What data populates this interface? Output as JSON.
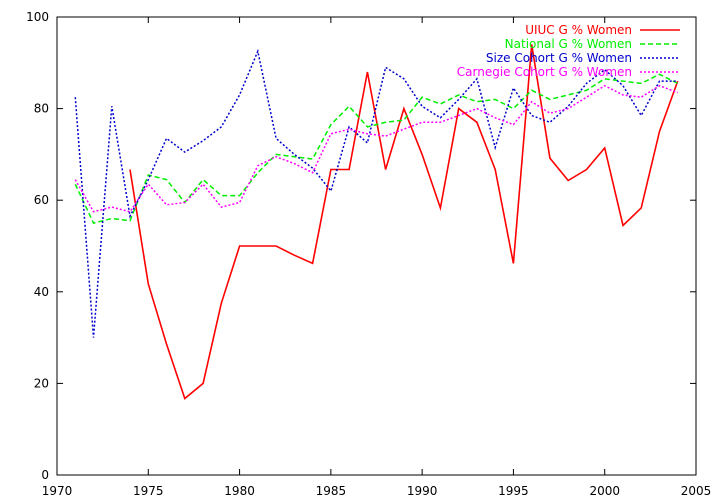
{
  "chart_data": {
    "type": "line",
    "title": "",
    "xlabel": "",
    "ylabel": "",
    "xlim": [
      1970,
      2005
    ],
    "ylim": [
      0,
      100
    ],
    "x_ticks": [
      1970,
      1975,
      1980,
      1985,
      1990,
      1995,
      2000,
      2005
    ],
    "y_ticks": [
      0,
      20,
      40,
      60,
      80,
      100
    ],
    "grid": false,
    "legend_position": "top-right",
    "series": [
      {
        "name": "UIUC G % Women",
        "color": "#ff0000",
        "dash": "solid",
        "x": [
          1974,
          1975,
          1976,
          1977,
          1978,
          1979,
          1980,
          1981,
          1982,
          1983,
          1984,
          1985,
          1986,
          1987,
          1988,
          1989,
          1990,
          1991,
          1992,
          1993,
          1994,
          1995,
          1996,
          1997,
          1998,
          1999,
          2000,
          2001,
          2002,
          2003,
          2004
        ],
        "y": [
          66.7,
          41.7,
          28.6,
          16.7,
          20.0,
          37.5,
          50.0,
          50.0,
          50.0,
          48.0,
          46.2,
          66.7,
          66.7,
          88.0,
          66.7,
          80.0,
          70.0,
          58.3,
          80.0,
          77.0,
          66.7,
          46.2,
          94.0,
          69.2,
          64.3,
          66.7,
          71.4,
          54.5,
          58.3,
          75.0,
          86.0
        ]
      },
      {
        "name": "National G % Women",
        "color": "#00ee00",
        "dash": "dashed",
        "x": [
          1971,
          1972,
          1973,
          1974,
          1975,
          1976,
          1977,
          1978,
          1979,
          1980,
          1981,
          1982,
          1983,
          1984,
          1985,
          1986,
          1987,
          1988,
          1989,
          1990,
          1991,
          1992,
          1993,
          1994,
          1995,
          1996,
          1997,
          1998,
          1999,
          2000,
          2001,
          2002,
          2003,
          2004
        ],
        "y": [
          63.5,
          55.0,
          56.0,
          55.5,
          65.5,
          64.5,
          59.5,
          64.5,
          61.0,
          61.0,
          66.0,
          70.0,
          69.5,
          69.0,
          76.5,
          80.5,
          76.0,
          77.0,
          77.5,
          82.5,
          81.0,
          83.0,
          81.5,
          82.0,
          80.0,
          84.0,
          82.0,
          83.0,
          84.0,
          86.5,
          86.0,
          85.5,
          87.5,
          85.5
        ]
      },
      {
        "name": "Size Cohort G % Women",
        "color": "#0000cc",
        "dash": "dotted",
        "x": [
          1971,
          1972,
          1973,
          1974,
          1975,
          1976,
          1977,
          1978,
          1979,
          1980,
          1981,
          1982,
          1983,
          1984,
          1985,
          1986,
          1987,
          1988,
          1989,
          1990,
          1991,
          1992,
          1993,
          1994,
          1995,
          1996,
          1997,
          1998,
          1999,
          2000,
          2001,
          2002,
          2003,
          2004
        ],
        "y": [
          82.5,
          30.0,
          80.5,
          56.5,
          64.5,
          73.5,
          70.5,
          73.0,
          76.0,
          83.0,
          92.5,
          73.5,
          70.0,
          67.0,
          62.0,
          76.0,
          72.5,
          89.0,
          86.5,
          80.5,
          78.0,
          82.0,
          86.5,
          71.5,
          84.5,
          78.5,
          77.0,
          80.5,
          85.5,
          88.5,
          85.0,
          78.5,
          86.0,
          86.0
        ]
      },
      {
        "name": "Carnegie Cohort G % Women",
        "color": "#ff00ff",
        "dash": "dotted",
        "x": [
          1971,
          1972,
          1973,
          1974,
          1975,
          1976,
          1977,
          1978,
          1979,
          1980,
          1981,
          1982,
          1983,
          1984,
          1985,
          1986,
          1987,
          1988,
          1989,
          1990,
          1991,
          1992,
          1993,
          1994,
          1995,
          1996,
          1997,
          1998,
          1999,
          2000,
          2001,
          2002,
          2003,
          2004
        ],
        "y": [
          64.5,
          57.5,
          58.5,
          57.5,
          63.5,
          59.0,
          59.5,
          63.5,
          58.5,
          59.5,
          67.5,
          69.5,
          68.0,
          66.0,
          74.5,
          75.5,
          74.5,
          74.0,
          75.5,
          77.0,
          77.0,
          78.5,
          80.0,
          78.0,
          76.5,
          81.5,
          79.0,
          80.0,
          82.5,
          85.0,
          83.0,
          82.5,
          85.0,
          83.5
        ]
      }
    ]
  }
}
